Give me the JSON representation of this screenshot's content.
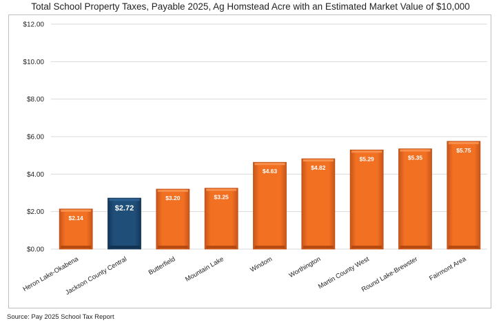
{
  "source": "Source: Pay 2025 School Tax Report",
  "colors": {
    "default_bar": "#f27022",
    "highlight_bar": "#1f4e79",
    "gridline": "#d9d9d9",
    "axis_text": "#222222"
  },
  "chart_data": {
    "type": "bar",
    "title": "Total School Property Taxes, Payable 2025, Ag Homstead Acre with an Estimated Market Value of $10,000",
    "xlabel": "",
    "ylabel": "",
    "ylim": [
      0,
      12
    ],
    "yticks": [
      0,
      2,
      4,
      6,
      8,
      10,
      12
    ],
    "ytick_labels": [
      "$0.00",
      "$2.00",
      "$4.00",
      "$6.00",
      "$8.00",
      "$10.00",
      "$12.00"
    ],
    "grid": true,
    "legend": "none",
    "highlight": "Jackson County Central",
    "categories": [
      "Heron Lake-Okabena",
      "Jackson County Central",
      "Butterfield",
      "Mountain Lake",
      "Windom",
      "Worthington",
      "Martin County West",
      "Round Lake-Brewster",
      "Fairmont Area"
    ],
    "values": [
      2.14,
      2.72,
      3.2,
      3.25,
      4.63,
      4.82,
      5.29,
      5.35,
      5.75
    ],
    "data_labels": [
      "$2.14",
      "$2.72",
      "$3.20",
      "$3.25",
      "$4.63",
      "$4.82",
      "$5.29",
      "$5.35",
      "$5.75"
    ]
  }
}
